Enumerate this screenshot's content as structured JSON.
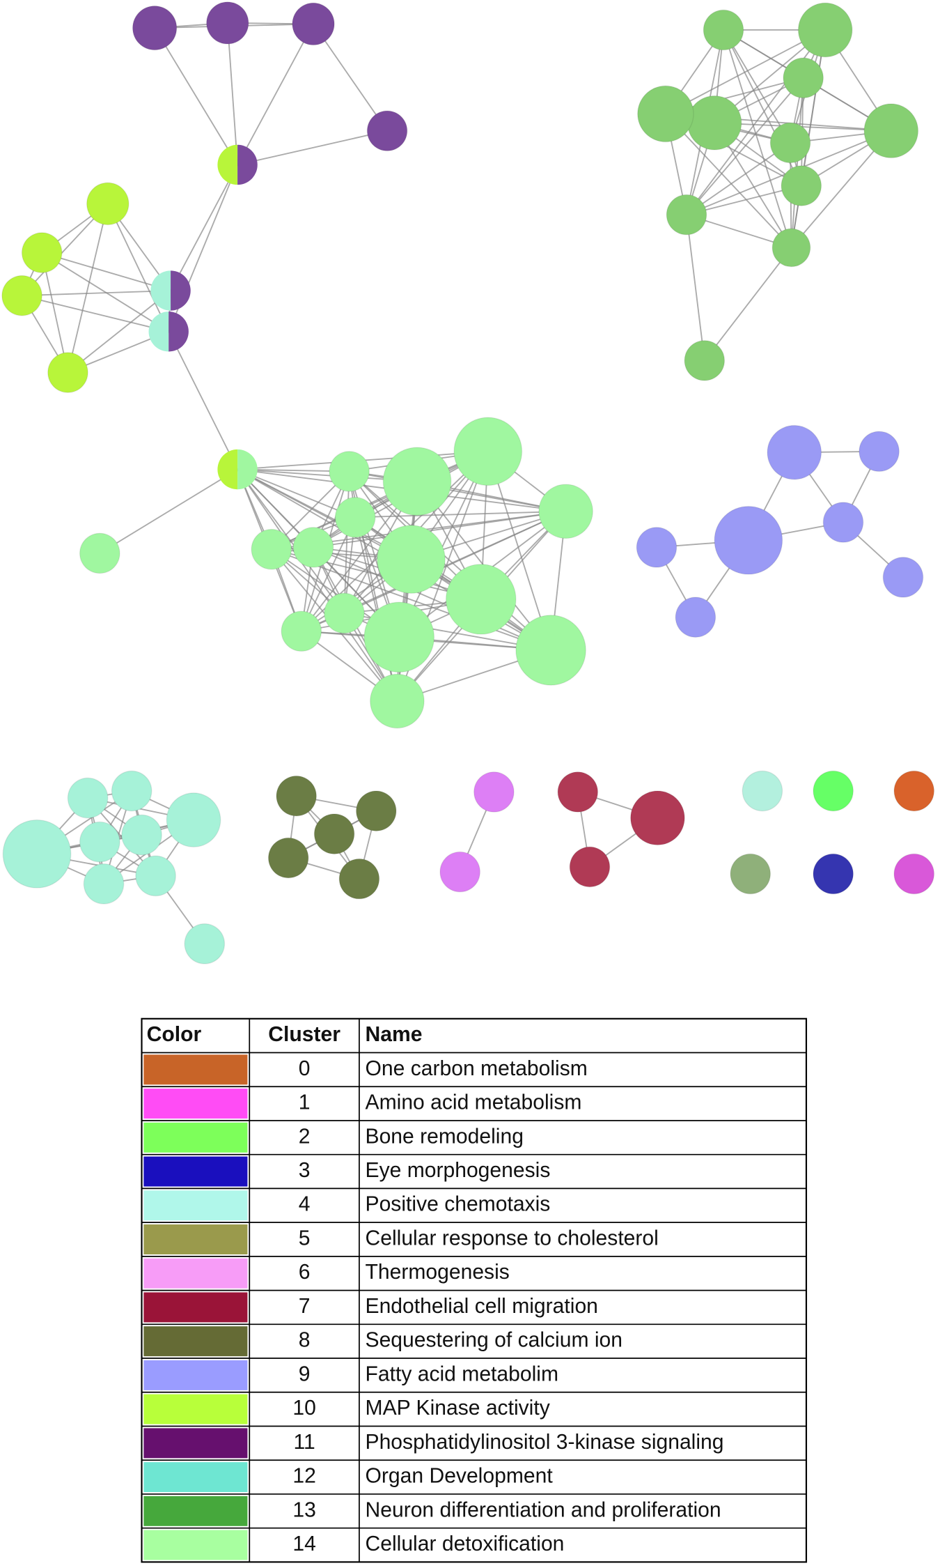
{
  "table": {
    "columns": [
      "Color",
      "Cluster",
      "Name"
    ],
    "rows": [
      {
        "color": "#c86428",
        "cluster": "0",
        "name": "One carbon metabolism"
      },
      {
        "color": "#ff4cf5",
        "cluster": "1",
        "name": "Amino acid metabolism"
      },
      {
        "color": "#7dff5a",
        "cluster": "2",
        "name": "Bone remodeling"
      },
      {
        "color": "#1a0fbe",
        "cluster": "3",
        "name": "Eye morphogenesis"
      },
      {
        "color": "#b0f7ea",
        "cluster": "4",
        "name": "Positive chemotaxis"
      },
      {
        "color": "#9a9a4c",
        "cluster": "5",
        "name": "Cellular response to cholesterol"
      },
      {
        "color": "#f79cf7",
        "cluster": "6",
        "name": "Thermogenesis"
      },
      {
        "color": "#9a1438",
        "cluster": "7",
        "name": "Endothelial cell migration"
      },
      {
        "color": "#656b35",
        "cluster": "8",
        "name": "Sequestering of calcium ion"
      },
      {
        "color": "#9a9cff",
        "cluster": "9",
        "name": "Fatty acid metabolim"
      },
      {
        "color": "#b8ff3a",
        "cluster": "10",
        "name": "MAP Kinase activity"
      },
      {
        "color": "#66106e",
        "cluster": "11",
        "name": "Phosphatidylinositol 3-kinase signaling"
      },
      {
        "color": "#6ee6d2",
        "cluster": "12",
        "name": "Organ Development"
      },
      {
        "color": "#46a83c",
        "cluster": "13",
        "name": "Neuron differentiation and proliferation"
      },
      {
        "color": "#a8ffa0",
        "cluster": "14",
        "name": "Cellular detoxification"
      }
    ]
  }
}
